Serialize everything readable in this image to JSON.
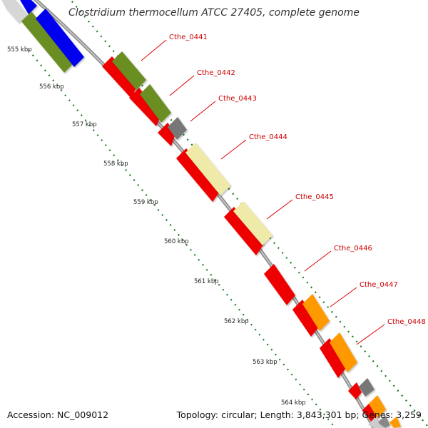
{
  "title": "Clostridium thermocellum ATCC 27405, complete genome",
  "accession_text": "Accession: NC_009012",
  "stats_text": "Topology: circular; Length: 3,843,301 bp; Genes: 3,259",
  "colors": {
    "background": "#ffffff",
    "backbone": "#9a9a9a",
    "ruler_dots": "#1a7a1a",
    "cds_red": "#ee0000",
    "olive": "#6b8e23",
    "blue": "#0000ee",
    "pale_yellow": "#f0eaa8",
    "orange": "#ff9900",
    "gray": "#777777",
    "label_red": "#cc0000"
  },
  "kbp_ticks": [
    "555 kbp",
    "556 kbp",
    "557 kbp",
    "558 kbp",
    "559 kbp",
    "560 kbp",
    "561 kbp",
    "562 kbp",
    "563 kbp",
    "564 kbp"
  ],
  "gene_labels": [
    "Cthe_0441",
    "Cthe_0442",
    "Cthe_0443",
    "Cthe_0444",
    "Cthe_0445",
    "Cthe_0446",
    "Cthe_0447",
    "Cthe_0448"
  ]
}
